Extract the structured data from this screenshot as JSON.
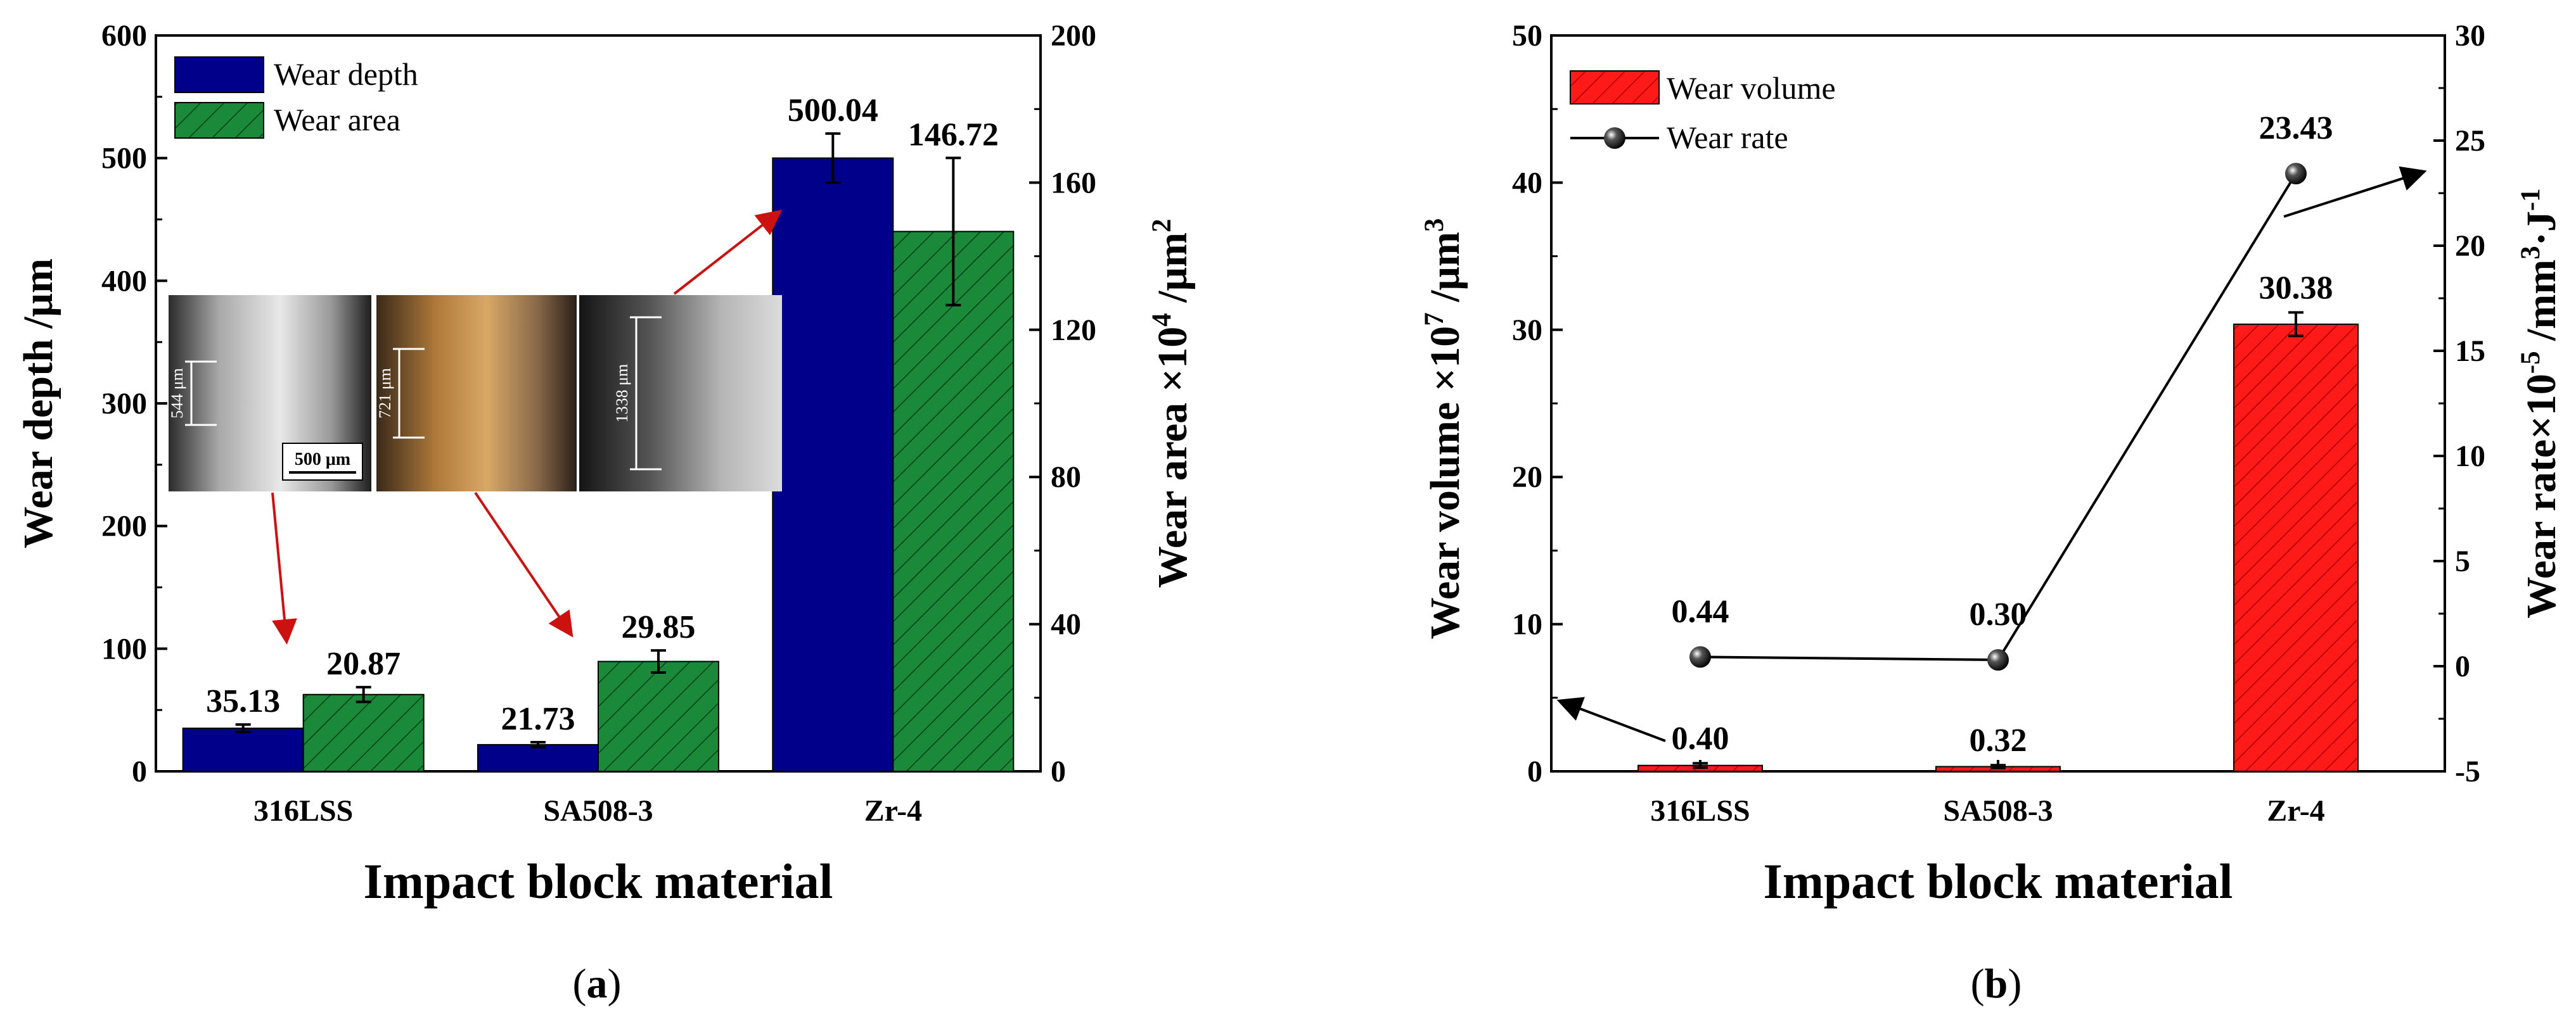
{
  "chart_data": [
    {
      "type": "bar",
      "panel_label": "a",
      "title": "",
      "xlabel": "Impact block material",
      "categories": [
        "316LSS",
        "SA508-3",
        "Zr-4"
      ],
      "ylabel": "Wear depth /μm",
      "ylim": [
        0,
        600
      ],
      "yticks": [
        "0",
        "100",
        "200",
        "300",
        "400",
        "500",
        "600"
      ],
      "y2label_main": "Wear area ×10",
      "y2label_sup": "4",
      "y2label_unit": " /μm",
      "y2label_unit_sup": "2",
      "y2lim": [
        0,
        200
      ],
      "y2ticks": [
        "0",
        "40",
        "80",
        "120",
        "160",
        "200"
      ],
      "legend_position": "top-left",
      "series": [
        {
          "name": "Wear depth",
          "axis": "left",
          "color": "#00008b",
          "pattern": "solid",
          "values": [
            35.13,
            21.73,
            500.04
          ],
          "errors": [
            3,
            2,
            20
          ],
          "labels": [
            "35.13",
            "21.73",
            "500.04"
          ]
        },
        {
          "name": "Wear area",
          "axis": "right",
          "color": "#1a8a3a",
          "pattern": "hatch",
          "values": [
            20.87,
            29.85,
            146.72
          ],
          "errors": [
            2,
            3,
            20
          ],
          "labels": [
            "20.87",
            "29.85",
            "146.72"
          ]
        }
      ],
      "inset": {
        "photos": [
          {
            "caption": "544 μm",
            "tone": "steel"
          },
          {
            "caption": "721 μm",
            "tone": "rust"
          },
          {
            "caption": "1338 μm",
            "tone": "steel-dark"
          }
        ],
        "scale_bar": "500 μm"
      }
    },
    {
      "type": "bar+line",
      "panel_label": "b",
      "title": "",
      "xlabel": "Impact block material",
      "categories": [
        "316LSS",
        "SA508-3",
        "Zr-4"
      ],
      "ylabel_main": "Wear volume ×10",
      "ylabel_sup": "7",
      "ylabel_unit": " /μm",
      "ylabel_unit_sup": "3",
      "ylim": [
        0,
        50
      ],
      "yticks": [
        "0",
        "10",
        "20",
        "30",
        "40",
        "50"
      ],
      "y2label_main": "Wear rate×10",
      "y2label_sup": "-5",
      "y2label_unit": " /mm",
      "y2label_unit_sup": "3",
      "y2label_tail": "·J",
      "y2label_tail_sup": "-1",
      "y2lim": [
        -5,
        30
      ],
      "y2ticks": [
        "-5",
        "0",
        "5",
        "10",
        "15",
        "20",
        "25",
        "30"
      ],
      "legend_position": "top-left",
      "series": [
        {
          "name": "Wear volume",
          "kind": "bar",
          "axis": "left",
          "color": "#ff0000",
          "pattern": "hatch",
          "values": [
            0.4,
            0.32,
            30.38
          ],
          "errors": [
            0.15,
            0.1,
            0.8
          ],
          "labels": [
            "0.40",
            "0.32",
            "30.38"
          ]
        },
        {
          "name": "Wear rate",
          "kind": "line",
          "axis": "right",
          "color": "#000000",
          "marker": "sphere",
          "values": [
            0.44,
            0.3,
            23.43
          ],
          "labels": [
            "0.44",
            "0.30",
            "23.43"
          ]
        }
      ]
    }
  ]
}
